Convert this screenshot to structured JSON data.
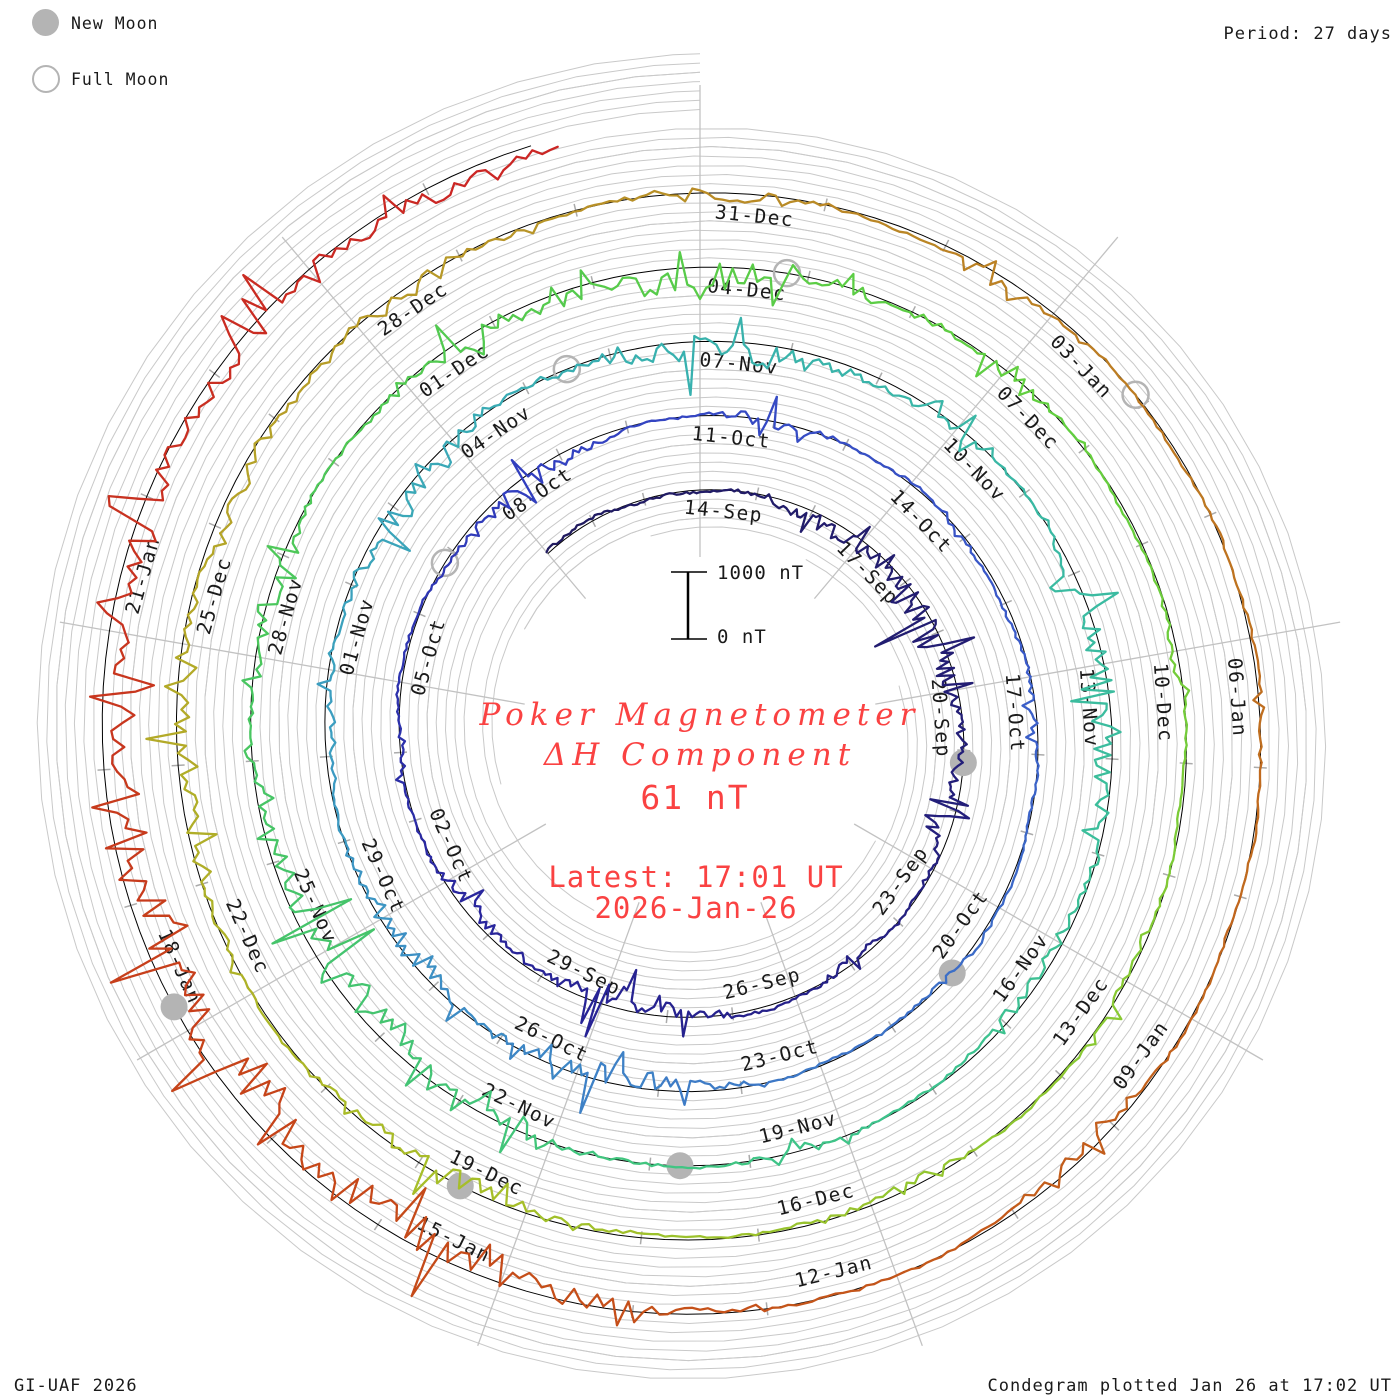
{
  "header": {
    "legend": [
      {
        "label": "New Moon",
        "type": "filled"
      },
      {
        "label": "Full Moon",
        "type": "open"
      }
    ],
    "period_label": "Period: 27 days"
  },
  "footer": {
    "left": "GI-UAF 2026",
    "right": "Condegram plotted Jan 26 at 17:02 UT"
  },
  "center_text": {
    "title_line1": "Poker Magnetometer",
    "title_line2": "ΔH Component",
    "latest_value": "61 nT",
    "latest_time": "Latest: 17:01 UT",
    "latest_date": "2026-Jan-26"
  },
  "scalebar": {
    "top_label": "1000 nT",
    "bottom_label": "0 nT",
    "span_nT": 1000
  },
  "colors": {
    "accent_red": "#fa4242",
    "grid_gray": "#c9c9c9",
    "spoke_gray": "#c2c2c2",
    "tick_gray": "#ababab",
    "moon_gray": "#b4b4b4",
    "baseline_black": "#000000",
    "label_black": "#1a1a1a"
  },
  "chart_data": {
    "type": "line",
    "projection": "spiral-polar-condegram",
    "title": "Poker Magnetometer ΔH Component",
    "period_days": 27,
    "latest_value_nT": 61,
    "latest_timestamp": "2026-Jan-26 17:01 UT",
    "value_reference_nT": [
      0,
      1000
    ],
    "spiral_start_day": 0,
    "spiral_end_day": 137,
    "date_labels": [
      {
        "label": "14-Sep",
        "day": 3
      },
      {
        "label": "17-Sep",
        "day": 6
      },
      {
        "label": "20-Sep",
        "day": 9
      },
      {
        "label": "23-Sep",
        "day": 12
      },
      {
        "label": "26-Sep",
        "day": 15
      },
      {
        "label": "29-Sep",
        "day": 18
      },
      {
        "label": "02-Oct",
        "day": 21
      },
      {
        "label": "05-Oct",
        "day": 24
      },
      {
        "label": "08-Oct",
        "day": 27
      },
      {
        "label": "11-Oct",
        "day": 30
      },
      {
        "label": "14-Oct",
        "day": 33
      },
      {
        "label": "17-Oct",
        "day": 36
      },
      {
        "label": "20-Oct",
        "day": 39
      },
      {
        "label": "23-Oct",
        "day": 42
      },
      {
        "label": "26-Oct",
        "day": 45
      },
      {
        "label": "29-Oct",
        "day": 48
      },
      {
        "label": "01-Nov",
        "day": 51
      },
      {
        "label": "04-Nov",
        "day": 54
      },
      {
        "label": "07-Nov",
        "day": 57
      },
      {
        "label": "10-Nov",
        "day": 60
      },
      {
        "label": "13-Nov",
        "day": 63
      },
      {
        "label": "16-Nov",
        "day": 66
      },
      {
        "label": "19-Nov",
        "day": 69
      },
      {
        "label": "22-Nov",
        "day": 72
      },
      {
        "label": "25-Nov",
        "day": 75
      },
      {
        "label": "28-Nov",
        "day": 78
      },
      {
        "label": "01-Dec",
        "day": 81
      },
      {
        "label": "04-Dec",
        "day": 84
      },
      {
        "label": "07-Dec",
        "day": 87
      },
      {
        "label": "10-Dec",
        "day": 90
      },
      {
        "label": "13-Dec",
        "day": 93
      },
      {
        "label": "16-Dec",
        "day": 96
      },
      {
        "label": "19-Dec",
        "day": 99
      },
      {
        "label": "22-Dec",
        "day": 102
      },
      {
        "label": "25-Dec",
        "day": 105
      },
      {
        "label": "28-Dec",
        "day": 108
      },
      {
        "label": "31-Dec",
        "day": 111
      },
      {
        "label": "03-Jan",
        "day": 114
      },
      {
        "label": "06-Jan",
        "day": 117
      },
      {
        "label": "09-Jan",
        "day": 120
      },
      {
        "label": "12-Jan",
        "day": 123
      },
      {
        "label": "15-Jan",
        "day": 126
      },
      {
        "label": "18-Jan",
        "day": 129
      },
      {
        "label": "21-Jan",
        "day": 132
      }
    ],
    "new_moon_days": [
      10.2,
      40.0,
      70.7,
      99.6,
      129.2
    ],
    "full_moon_days": [
      25.8,
      55.5,
      84.8,
      114.9
    ],
    "color_stops": [
      {
        "day": 0,
        "color": "#201a5e"
      },
      {
        "day": 10,
        "color": "#231e77"
      },
      {
        "day": 20,
        "color": "#28249a"
      },
      {
        "day": 28,
        "color": "#3240c0"
      },
      {
        "day": 36,
        "color": "#3a5cc8"
      },
      {
        "day": 44,
        "color": "#3e7ec6"
      },
      {
        "day": 50,
        "color": "#3c9cc2"
      },
      {
        "day": 56,
        "color": "#38b0b0"
      },
      {
        "day": 64,
        "color": "#3bbd9d"
      },
      {
        "day": 70,
        "color": "#3fc586"
      },
      {
        "day": 76,
        "color": "#46c468"
      },
      {
        "day": 82,
        "color": "#53ca4e"
      },
      {
        "day": 88,
        "color": "#63cf3f"
      },
      {
        "day": 94,
        "color": "#8cc832"
      },
      {
        "day": 100,
        "color": "#a8bd28"
      },
      {
        "day": 105,
        "color": "#b4a828"
      },
      {
        "day": 110,
        "color": "#b89328"
      },
      {
        "day": 114,
        "color": "#bb7f24"
      },
      {
        "day": 118,
        "color": "#c06c1e"
      },
      {
        "day": 123,
        "color": "#c4571a"
      },
      {
        "day": 128,
        "color": "#c64518"
      },
      {
        "day": 132,
        "color": "#c8341f"
      },
      {
        "day": 137,
        "color": "#cb2424"
      }
    ],
    "storm_events": [
      [
        5.5,
        1.0,
        30
      ],
      [
        7.8,
        1.6,
        48
      ],
      [
        11,
        0.8,
        26
      ],
      [
        14,
        0.5,
        14
      ],
      [
        17.6,
        1.2,
        40
      ],
      [
        20.5,
        0.8,
        22
      ],
      [
        23,
        0.5,
        12
      ],
      [
        27.5,
        1.0,
        26
      ],
      [
        31,
        0.7,
        20
      ],
      [
        34,
        0.4,
        10
      ],
      [
        36.5,
        0.5,
        13
      ],
      [
        40,
        0.5,
        12
      ],
      [
        44.6,
        1.2,
        34
      ],
      [
        47.6,
        1.1,
        30
      ],
      [
        50.5,
        0.6,
        16
      ],
      [
        53.2,
        1.2,
        38
      ],
      [
        57.3,
        1.3,
        46
      ],
      [
        60,
        0.6,
        18
      ],
      [
        63.3,
        1.3,
        55
      ],
      [
        66.5,
        0.7,
        22
      ],
      [
        69.5,
        0.5,
        14
      ],
      [
        72.5,
        0.8,
        24
      ],
      [
        74.9,
        1.5,
        50
      ],
      [
        78.5,
        0.8,
        26
      ],
      [
        81.5,
        0.8,
        24
      ],
      [
        83.9,
        1.4,
        44
      ],
      [
        87,
        0.7,
        22
      ],
      [
        90,
        0.4,
        10
      ],
      [
        93,
        0.5,
        14
      ],
      [
        95.8,
        0.7,
        18
      ],
      [
        99.8,
        1.0,
        26
      ],
      [
        103.8,
        1.3,
        32
      ],
      [
        106.5,
        0.8,
        22
      ],
      [
        108.6,
        0.9,
        26
      ],
      [
        111.3,
        0.6,
        16
      ],
      [
        113.6,
        0.6,
        15
      ],
      [
        117.5,
        0.4,
        10
      ],
      [
        121.3,
        0.5,
        14
      ],
      [
        124,
        0.5,
        12
      ],
      [
        126.6,
        1.5,
        52
      ],
      [
        129.2,
        1.9,
        62
      ],
      [
        132.2,
        1.3,
        40
      ],
      [
        134.6,
        1.2,
        38
      ],
      [
        136.4,
        1.0,
        34
      ]
    ]
  }
}
